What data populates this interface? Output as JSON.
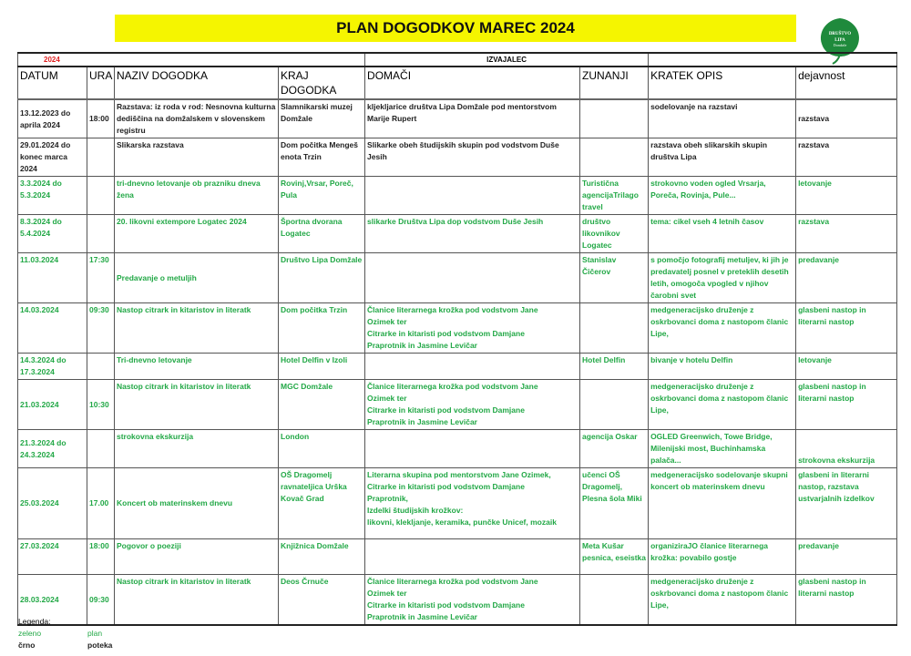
{
  "title": "PLAN DOGODKOV MAREC 2024",
  "logo_text": "DRUŠTVO LIPA Domžale",
  "year": "2024",
  "izvajalec_label": "IZVAJALEC",
  "colors": {
    "plan": "#22a846",
    "poteka": "#222222",
    "title_bg": "#f5f500"
  },
  "headers": [
    "DATUM",
    "URA",
    "NAZIV DOGODKA",
    "KRAJ DOGODKA",
    "DOMAČI",
    "ZUNANJI",
    "KRATEK OPIS",
    "dejavnost"
  ],
  "rows": [
    {
      "status": "black",
      "cells": [
        "13.12.2023 do\naprila 2024",
        "18:00",
        "Razstava: iz roda v rod: Nesnovna kulturna dediščina na domžalskem v slovenskem registru",
        "Slamnikarski muzej Domžale",
        "kljekljarice društva Lipa Domžale pod mentorstvom Marije Rupert",
        "",
        "sodelovanje na razstavi",
        "razstava"
      ]
    },
    {
      "status": "black",
      "cells": [
        "29.01.2024 do\nkonec marca\n2024",
        "",
        "Slikarska razstava",
        "Dom počitka Mengeš enota Trzin",
        "Slikarke obeh študijskih skupin pod vodstvom Duše Jesih",
        "",
        "razstava obeh slikarskih skupin društva Lipa",
        "razstava"
      ]
    },
    {
      "status": "green",
      "cells": [
        "3.3.2024 do\n5.3.2024",
        "",
        "tri-dnevno letovanje ob prazniku dneva žena",
        "Rovinj,Vrsar, Poreč, Pula",
        "",
        "Turistična agencijaTrilago travel",
        "strokovno voden ogled Vrsarja, Poreča, Rovinja, Pule...",
        "letovanje"
      ]
    },
    {
      "status": "green",
      "cells": [
        "8.3.2024 do\n5.4.2024",
        "",
        "20. likovni extempore Logatec 2024",
        "Športna dvorana Logatec",
        "slikarke Društva Lipa dop vodstvom Duše Jesih",
        "društvo likovnikov Logatec",
        "tema: cikel vseh 4 letnih časov",
        "razstava"
      ]
    },
    {
      "status": "green",
      "cells": [
        "11.03.2024",
        "17:30",
        "Predavanje o metuljih",
        "Društvo Lipa Domžale",
        "",
        "Stanislav Čičerov",
        " s pomočjo fotografij metuljev, ki jih je predavatelj posnel v preteklih desetih letih, omogoča vpogled v njihov čarobni svet",
        "predavanje"
      ]
    },
    {
      "status": "green",
      "cells": [
        "14.03.2024",
        "09:30",
        "Nastop citrark in kitaristov  in literatk",
        " Dom počitka Trzin",
        "Članice literarnega krožka pod vodstvom Jane\nOzimek  ter\nCitrarke in kitaristi pod vodstvom Damjane\nPraprotnik in Jasmine Levičar",
        "",
        "medgeneracijsko druženje z oskrbovanci doma z nastopom članic Lipe,",
        "glasbeni nastop in literarni nastop"
      ]
    },
    {
      "status": "green",
      "cells": [
        "14.3.2024 do\n17.3.2024",
        "",
        "Tri-dnevno letovanje",
        "Hotel Delfin v Izoli",
        "",
        "Hotel Delfin",
        "bivanje v hotelu Delfin",
        "letovanje"
      ]
    },
    {
      "status": "green",
      "cells": [
        "21.03.2024",
        "10:30",
        "Nastop citrark in kitaristov  in literatk",
        "MGC Domžale",
        "Članice literarnega krožka pod vodstvom Jane\nOzimek  ter\nCitrarke in kitaristi pod vodstvom Damjane\nPraprotnik in Jasmine Levičar",
        "",
        "medgeneracijsko druženje z oskrbovanci doma z nastopom članic Lipe,",
        "glasbeni nastop in literarni nastop"
      ]
    },
    {
      "status": "green",
      "cells": [
        "21.3.2024 do\n24.3.2024",
        "",
        "strokovna ekskurzija",
        "London",
        "",
        "agencija Oskar",
        "OGLED Greenwich, Towe Bridge, Milenijski most, Buchinhamska palača...",
        "strokovna ekskurzija"
      ]
    },
    {
      "status": "green",
      "cells": [
        "25.03.2024",
        "17.00",
        "Koncert ob materinskem dnevu",
        "OŠ Dragomelj ravnateljica Urška Kovač Grad",
        "Literarna skupina pod mentorstvom Jane Ozimek,\nCitrarke in kitaristi pod vodstvom Damjane\nPraprotnik,\nIzdelki študijskih krožkov:\nlikovni, kleklјanje, keramika, punčke Unicef, mozaik",
        "učenci OŠ Dragomelj, Plesna šola Miki",
        "medgeneracijsko sodelovanje skupni koncert ob materinskem dnevu",
        "glasbeni  in literarni nastop, razstava ustvarjalnih izdelkov"
      ]
    },
    {
      "status": "green",
      "cells": [
        "27.03.2024",
        "18:00",
        "Pogovor o poeziji",
        "Knjižnica Domžale",
        "",
        "Meta Kušar pesnica, eseistka",
        "organiziraJO članice literarnega krožka: povabilo gostje",
        "predavanje"
      ]
    },
    {
      "status": "green",
      "cells": [
        "28.03.2024",
        "09:30",
        "Nastop citrark in kitaristov  in literatk",
        "Deos Črnuče",
        "Članice literarnega krožka pod vodstvom Jane\nOzimek  ter\nCitrarke in kitaristi pod vodstvom Damjane\nPraprotnik in Jasmine Levičar",
        "",
        "medgeneracijsko druženje z oskrbovanci doma z nastopom članic Lipe,",
        "glasbeni nastop in literarni nastop"
      ]
    }
  ],
  "legend": {
    "title": "Legenda:",
    "items": [
      {
        "key": "zeleno",
        "value": "plan",
        "status": "green"
      },
      {
        "key": "črno",
        "value": "poteka",
        "status": "black"
      }
    ]
  }
}
